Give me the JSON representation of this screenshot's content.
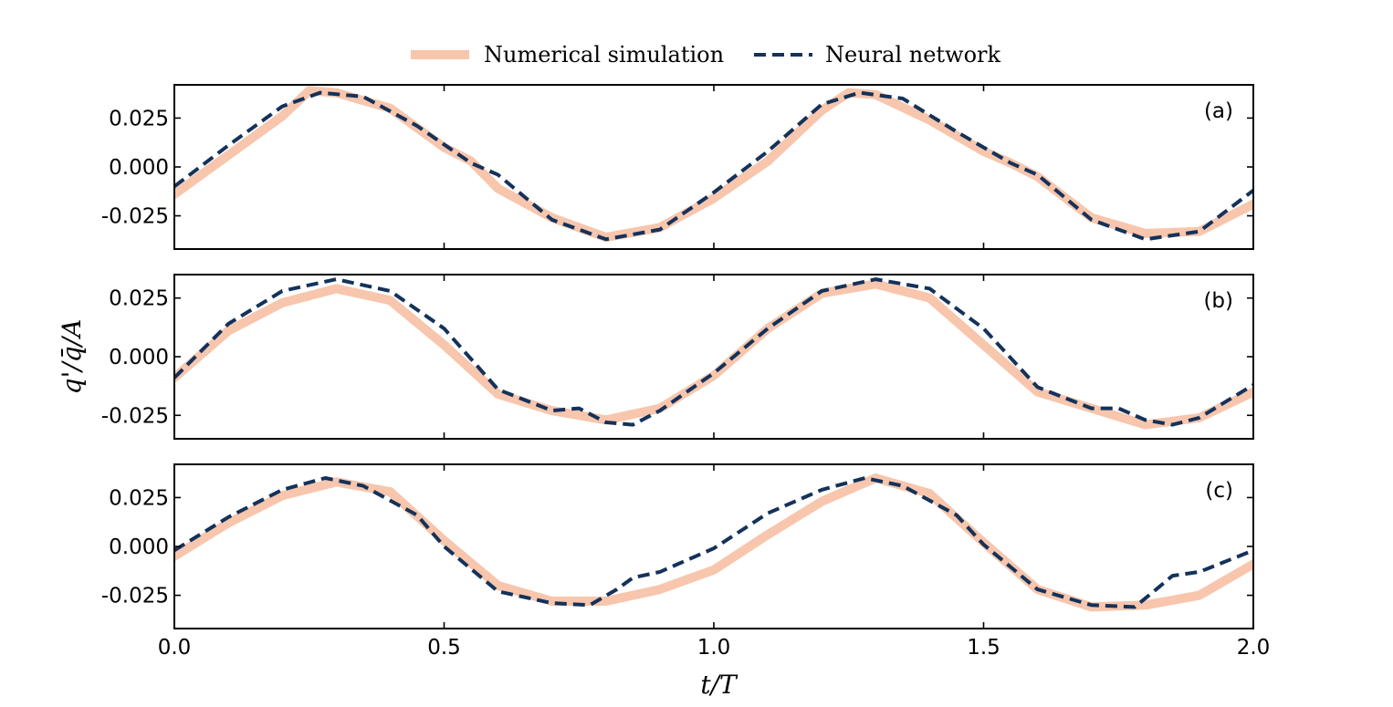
{
  "chart_data": {
    "type": "line",
    "xlabel": "t/T",
    "ylabel": "q'/q̄/A",
    "xlim": [
      0.0,
      2.0
    ],
    "x_ticks": [
      "0.0",
      "0.5",
      "1.0",
      "1.5",
      "2.0"
    ],
    "legend": {
      "position": "top-center",
      "entries": [
        {
          "name": "Numerical simulation",
          "color": "#f7c6ad",
          "style": "solid-thick"
        },
        {
          "name": "Neural network",
          "color": "#14325a",
          "style": "dashed"
        }
      ]
    },
    "panels": [
      {
        "label": "(a)",
        "ylim": [
          -0.042,
          0.042
        ],
        "y_ticks": [
          0.025,
          0.0,
          -0.025
        ],
        "y_tick_labels": [
          "0.025",
          "0.000",
          "-0.025"
        ],
        "series": [
          {
            "name": "Numerical simulation",
            "x": [
              0.0,
              0.1,
              0.2,
              0.25,
              0.3,
              0.4,
              0.5,
              0.55,
              0.6,
              0.7,
              0.8,
              0.9,
              1.0,
              1.1,
              1.2,
              1.25,
              1.3,
              1.4,
              1.5,
              1.55,
              1.6,
              1.7,
              1.8,
              1.9,
              2.0
            ],
            "y": [
              -0.014,
              0.006,
              0.026,
              0.039,
              0.038,
              0.03,
              0.01,
              0.003,
              -0.011,
              -0.026,
              -0.036,
              -0.031,
              -0.016,
              0.003,
              0.029,
              0.038,
              0.037,
              0.024,
              0.008,
              0.002,
              -0.005,
              -0.026,
              -0.034,
              -0.033,
              -0.019
            ]
          },
          {
            "name": "Neural network",
            "x": [
              0.0,
              0.1,
              0.2,
              0.27,
              0.35,
              0.45,
              0.55,
              0.6,
              0.7,
              0.8,
              0.9,
              1.0,
              1.1,
              1.2,
              1.27,
              1.35,
              1.45,
              1.55,
              1.6,
              1.7,
              1.8,
              1.9,
              2.0
            ],
            "y": [
              -0.01,
              0.011,
              0.031,
              0.038,
              0.036,
              0.021,
              0.002,
              -0.004,
              -0.027,
              -0.037,
              -0.032,
              -0.013,
              0.008,
              0.032,
              0.038,
              0.035,
              0.018,
              0.002,
              -0.004,
              -0.027,
              -0.037,
              -0.033,
              -0.012
            ]
          }
        ]
      },
      {
        "label": "(b)",
        "ylim": [
          -0.035,
          0.035
        ],
        "y_ticks": [
          0.025,
          0.0,
          -0.025
        ],
        "y_tick_labels": [
          "0.025",
          "0.000",
          "-0.025"
        ],
        "series": [
          {
            "name": "Numerical simulation",
            "x": [
              0.0,
              0.1,
              0.2,
              0.3,
              0.4,
              0.5,
              0.6,
              0.7,
              0.8,
              0.9,
              1.0,
              1.1,
              1.2,
              1.3,
              1.4,
              1.5,
              1.6,
              1.7,
              1.8,
              1.9,
              2.0
            ],
            "y": [
              -0.009,
              0.011,
              0.023,
              0.029,
              0.024,
              0.005,
              -0.016,
              -0.023,
              -0.027,
              -0.022,
              -0.008,
              0.012,
              0.027,
              0.031,
              0.025,
              0.005,
              -0.015,
              -0.022,
              -0.029,
              -0.026,
              -0.015
            ]
          },
          {
            "name": "Neural network",
            "x": [
              0.0,
              0.1,
              0.2,
              0.3,
              0.4,
              0.5,
              0.6,
              0.7,
              0.75,
              0.8,
              0.85,
              0.9,
              1.0,
              1.1,
              1.2,
              1.3,
              1.4,
              1.5,
              1.6,
              1.7,
              1.75,
              1.8,
              1.85,
              1.9,
              2.0
            ],
            "y": [
              -0.009,
              0.014,
              0.028,
              0.033,
              0.028,
              0.012,
              -0.014,
              -0.023,
              -0.022,
              -0.028,
              -0.029,
              -0.023,
              -0.007,
              0.012,
              0.028,
              0.033,
              0.029,
              0.012,
              -0.013,
              -0.022,
              -0.022,
              -0.027,
              -0.029,
              -0.026,
              -0.012
            ]
          }
        ]
      },
      {
        "label": "(c)",
        "ylim": [
          -0.042,
          0.042
        ],
        "y_ticks": [
          0.025,
          0.0,
          -0.025
        ],
        "y_tick_labels": [
          "0.025",
          "0.000",
          "-0.025"
        ],
        "series": [
          {
            "name": "Numerical simulation",
            "x": [
              0.0,
              0.1,
              0.2,
              0.3,
              0.4,
              0.5,
              0.6,
              0.7,
              0.8,
              0.9,
              1.0,
              1.1,
              1.2,
              1.3,
              1.4,
              1.5,
              1.6,
              1.7,
              1.8,
              1.9,
              2.0
            ],
            "y": [
              -0.005,
              0.012,
              0.026,
              0.033,
              0.028,
              0.003,
              -0.02,
              -0.028,
              -0.028,
              -0.022,
              -0.012,
              0.006,
              0.023,
              0.035,
              0.027,
              0.002,
              -0.022,
              -0.031,
              -0.03,
              -0.025,
              -0.009
            ]
          },
          {
            "name": "Neural network",
            "x": [
              0.0,
              0.1,
              0.2,
              0.28,
              0.35,
              0.45,
              0.5,
              0.6,
              0.7,
              0.77,
              0.82,
              0.85,
              0.9,
              1.0,
              1.1,
              1.2,
              1.28,
              1.35,
              1.45,
              1.5,
              1.6,
              1.7,
              1.78,
              1.82,
              1.85,
              1.9,
              2.0
            ],
            "y": [
              -0.002,
              0.015,
              0.029,
              0.035,
              0.031,
              0.016,
              0.0,
              -0.023,
              -0.029,
              -0.03,
              -0.022,
              -0.016,
              -0.013,
              -0.001,
              0.017,
              0.029,
              0.035,
              0.031,
              0.016,
              0.001,
              -0.022,
              -0.03,
              -0.031,
              -0.022,
              -0.015,
              -0.013,
              -0.002
            ]
          }
        ]
      }
    ]
  }
}
